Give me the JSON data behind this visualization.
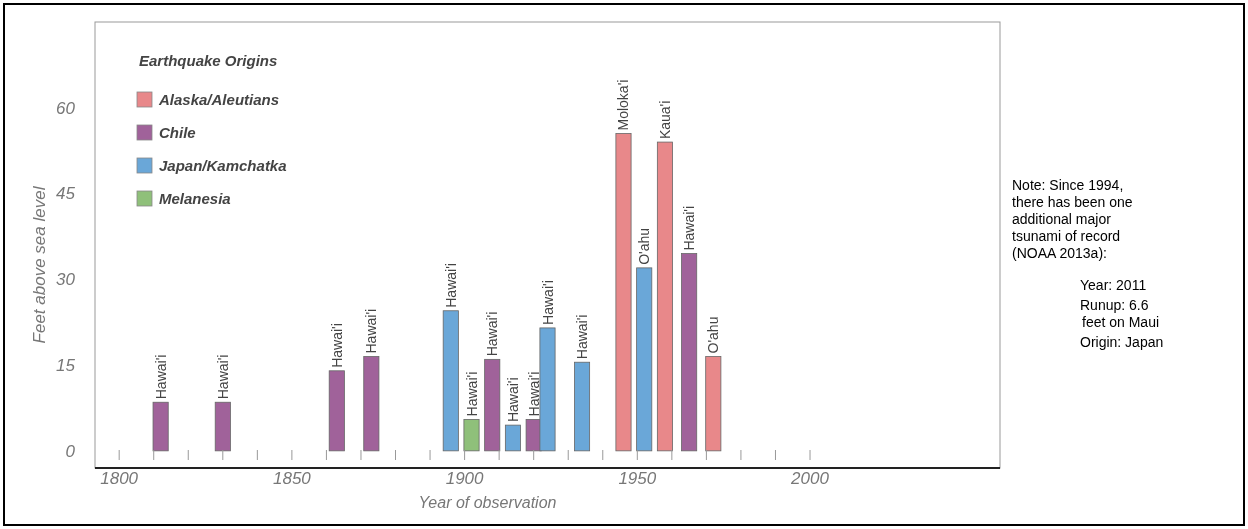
{
  "chart_data": {
    "type": "bar",
    "xlabel": "Year of observation",
    "ylabel": "Feet above sea level",
    "legend_title": "Earthquake Origins",
    "legend": "top left",
    "grid": false,
    "xlim": [
      1793,
      2055
    ],
    "ylim": [
      -3,
      75
    ],
    "xticks": [
      {
        "value": 1800,
        "label": "1800"
      },
      {
        "value": 1810,
        "label": null
      },
      {
        "value": 1820,
        "label": null
      },
      {
        "value": 1830,
        "label": null
      },
      {
        "value": 1840,
        "label": null
      },
      {
        "value": 1850,
        "label": "1850"
      },
      {
        "value": 1860,
        "label": null
      },
      {
        "value": 1870,
        "label": null
      },
      {
        "value": 1880,
        "label": null
      },
      {
        "value": 1890,
        "label": null
      },
      {
        "value": 1900,
        "label": "1900"
      },
      {
        "value": 1910,
        "label": null
      },
      {
        "value": 1920,
        "label": null
      },
      {
        "value": 1930,
        "label": null
      },
      {
        "value": 1940,
        "label": null
      },
      {
        "value": 1950,
        "label": "1950"
      },
      {
        "value": 1960,
        "label": null
      },
      {
        "value": 1970,
        "label": null
      },
      {
        "value": 1980,
        "label": null
      },
      {
        "value": 1990,
        "label": null
      },
      {
        "value": 2000,
        "label": "2000"
      }
    ],
    "yticks": [
      0,
      15,
      30,
      45,
      60
    ],
    "series": [
      {
        "name": "Alaska/Aleutians",
        "color": "#e8888a",
        "x": [
          1946,
          1958,
          1972
        ],
        "values": [
          55.5,
          54,
          16.5
        ]
      },
      {
        "name": "Chile",
        "color": "#a0629a",
        "x": [
          1812,
          1830,
          1863,
          1873,
          1908,
          1920,
          1965
        ],
        "values": [
          8.5,
          8.5,
          14,
          16.5,
          16,
          5.5,
          34.5
        ]
      },
      {
        "name": "Japan/Kamchatka",
        "color": "#6aa7d8",
        "x": [
          1896,
          1914,
          1924,
          1934,
          1952
        ],
        "values": [
          24.5,
          4.5,
          21.5,
          15.5,
          32
        ]
      },
      {
        "name": "Melanesia",
        "color": "#8fc07a",
        "x": [
          1902
        ],
        "values": [
          5.5
        ]
      }
    ],
    "annotations": [
      {
        "text": "Hawai'i",
        "x": 1812,
        "y": 8.5
      },
      {
        "text": "Hawai'i",
        "x": 1830,
        "y": 8.5
      },
      {
        "text": "Hawai'i",
        "x": 1863,
        "y": 14
      },
      {
        "text": "Hawai'i",
        "x": 1873,
        "y": 16.5
      },
      {
        "text": "Hawai'i",
        "x": 1896,
        "y": 24.5
      },
      {
        "text": "Hawai'i",
        "x": 1902,
        "y": 5.5
      },
      {
        "text": "Hawai'i",
        "x": 1908,
        "y": 16
      },
      {
        "text": "Hawai'i",
        "x": 1914,
        "y": 4.5
      },
      {
        "text": "Hawai'i",
        "x": 1920,
        "y": 5.5
      },
      {
        "text": "Hawai'i",
        "x": 1924,
        "y": 21.5
      },
      {
        "text": "Hawai'i",
        "x": 1934,
        "y": 15.5
      },
      {
        "text": "Moloka'i",
        "x": 1946,
        "y": 55.5
      },
      {
        "text": "O'ahu",
        "x": 1952,
        "y": 32
      },
      {
        "text": "Kaua'i",
        "x": 1958,
        "y": 54
      },
      {
        "text": "Hawai'i",
        "x": 1965,
        "y": 34.5
      },
      {
        "text": "O'ahu",
        "x": 1972,
        "y": 16.5
      },
      "Note: Since 1994, there has been one additional major tsunami of record (NOAA 2013a):",
      "Year: 2011",
      "Runup: 6.6 feet on Maui",
      "Origin: Japan"
    ]
  }
}
